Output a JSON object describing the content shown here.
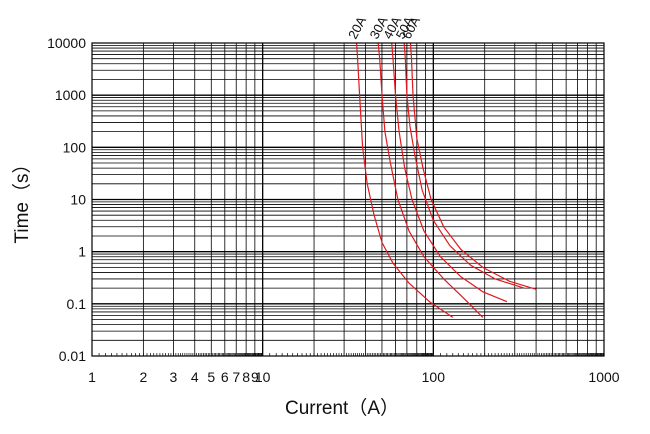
{
  "chart_data": {
    "type": "line",
    "title": "",
    "xlabel": "Current（A）",
    "ylabel": "Time（s）",
    "xscale": "log",
    "yscale": "log",
    "xlim": [
      1,
      1000
    ],
    "ylim": [
      0.01,
      10000
    ],
    "grid": true,
    "line_color": "#e0191e",
    "x_ticks": [
      {
        "value": 1,
        "label": "1"
      },
      {
        "value": 2,
        "label": "2"
      },
      {
        "value": 3,
        "label": "3"
      },
      {
        "value": 4,
        "label": "4"
      },
      {
        "value": 5,
        "label": "5"
      },
      {
        "value": 6,
        "label": "6"
      },
      {
        "value": 7,
        "label": "7"
      },
      {
        "value": 8,
        "label": "8"
      },
      {
        "value": 9,
        "label": "9"
      },
      {
        "value": 10,
        "label": "10"
      },
      {
        "value": 100,
        "label": "100"
      },
      {
        "value": 1000,
        "label": "1000"
      }
    ],
    "y_ticks": [
      {
        "value": 0.01,
        "label": "0.01"
      },
      {
        "value": 0.1,
        "label": "0.1"
      },
      {
        "value": 1,
        "label": "1"
      },
      {
        "value": 10,
        "label": "10"
      },
      {
        "value": 100,
        "label": "100"
      },
      {
        "value": 1000,
        "label": "1000"
      },
      {
        "value": 10000,
        "label": "10000"
      }
    ],
    "series": [
      {
        "name": "20A",
        "points": [
          [
            35.5,
            10000
          ],
          [
            36,
            5000
          ],
          [
            37,
            1000
          ],
          [
            38.5,
            100
          ],
          [
            41,
            20
          ],
          [
            45,
            5
          ],
          [
            50,
            1.5
          ],
          [
            58,
            0.6
          ],
          [
            72,
            0.25
          ],
          [
            95,
            0.11
          ],
          [
            130,
            0.055
          ]
        ]
      },
      {
        "name": "30A",
        "points": [
          [
            47.5,
            10000
          ],
          [
            48.5,
            5000
          ],
          [
            50,
            1000
          ],
          [
            52,
            200
          ],
          [
            56,
            50
          ],
          [
            62,
            10
          ],
          [
            72,
            2.5
          ],
          [
            88,
            0.8
          ],
          [
            115,
            0.3
          ],
          [
            150,
            0.13
          ],
          [
            195,
            0.055
          ]
        ]
      },
      {
        "name": "40A",
        "points": [
          [
            57,
            10000
          ],
          [
            58,
            5000
          ],
          [
            60,
            1000
          ],
          [
            63,
            200
          ],
          [
            68,
            40
          ],
          [
            75,
            10
          ],
          [
            88,
            2.5
          ],
          [
            110,
            0.8
          ],
          [
            145,
            0.33
          ],
          [
            195,
            0.17
          ],
          [
            270,
            0.11
          ]
        ]
      },
      {
        "name": "50A",
        "points": [
          [
            67.5,
            10000
          ],
          [
            68.5,
            5000
          ],
          [
            70,
            1000
          ],
          [
            73,
            250
          ],
          [
            78,
            70
          ],
          [
            86,
            15
          ],
          [
            100,
            4
          ],
          [
            125,
            1.3
          ],
          [
            165,
            0.55
          ],
          [
            230,
            0.3
          ],
          [
            340,
            0.2
          ]
        ]
      },
      {
        "name": "60A",
        "points": [
          [
            73.5,
            10000
          ],
          [
            74.5,
            5000
          ],
          [
            76,
            1000
          ],
          [
            80,
            150
          ],
          [
            87,
            40
          ],
          [
            97,
            10
          ],
          [
            115,
            3
          ],
          [
            145,
            1.1
          ],
          [
            195,
            0.5
          ],
          [
            280,
            0.27
          ],
          [
            400,
            0.19
          ]
        ]
      }
    ]
  }
}
